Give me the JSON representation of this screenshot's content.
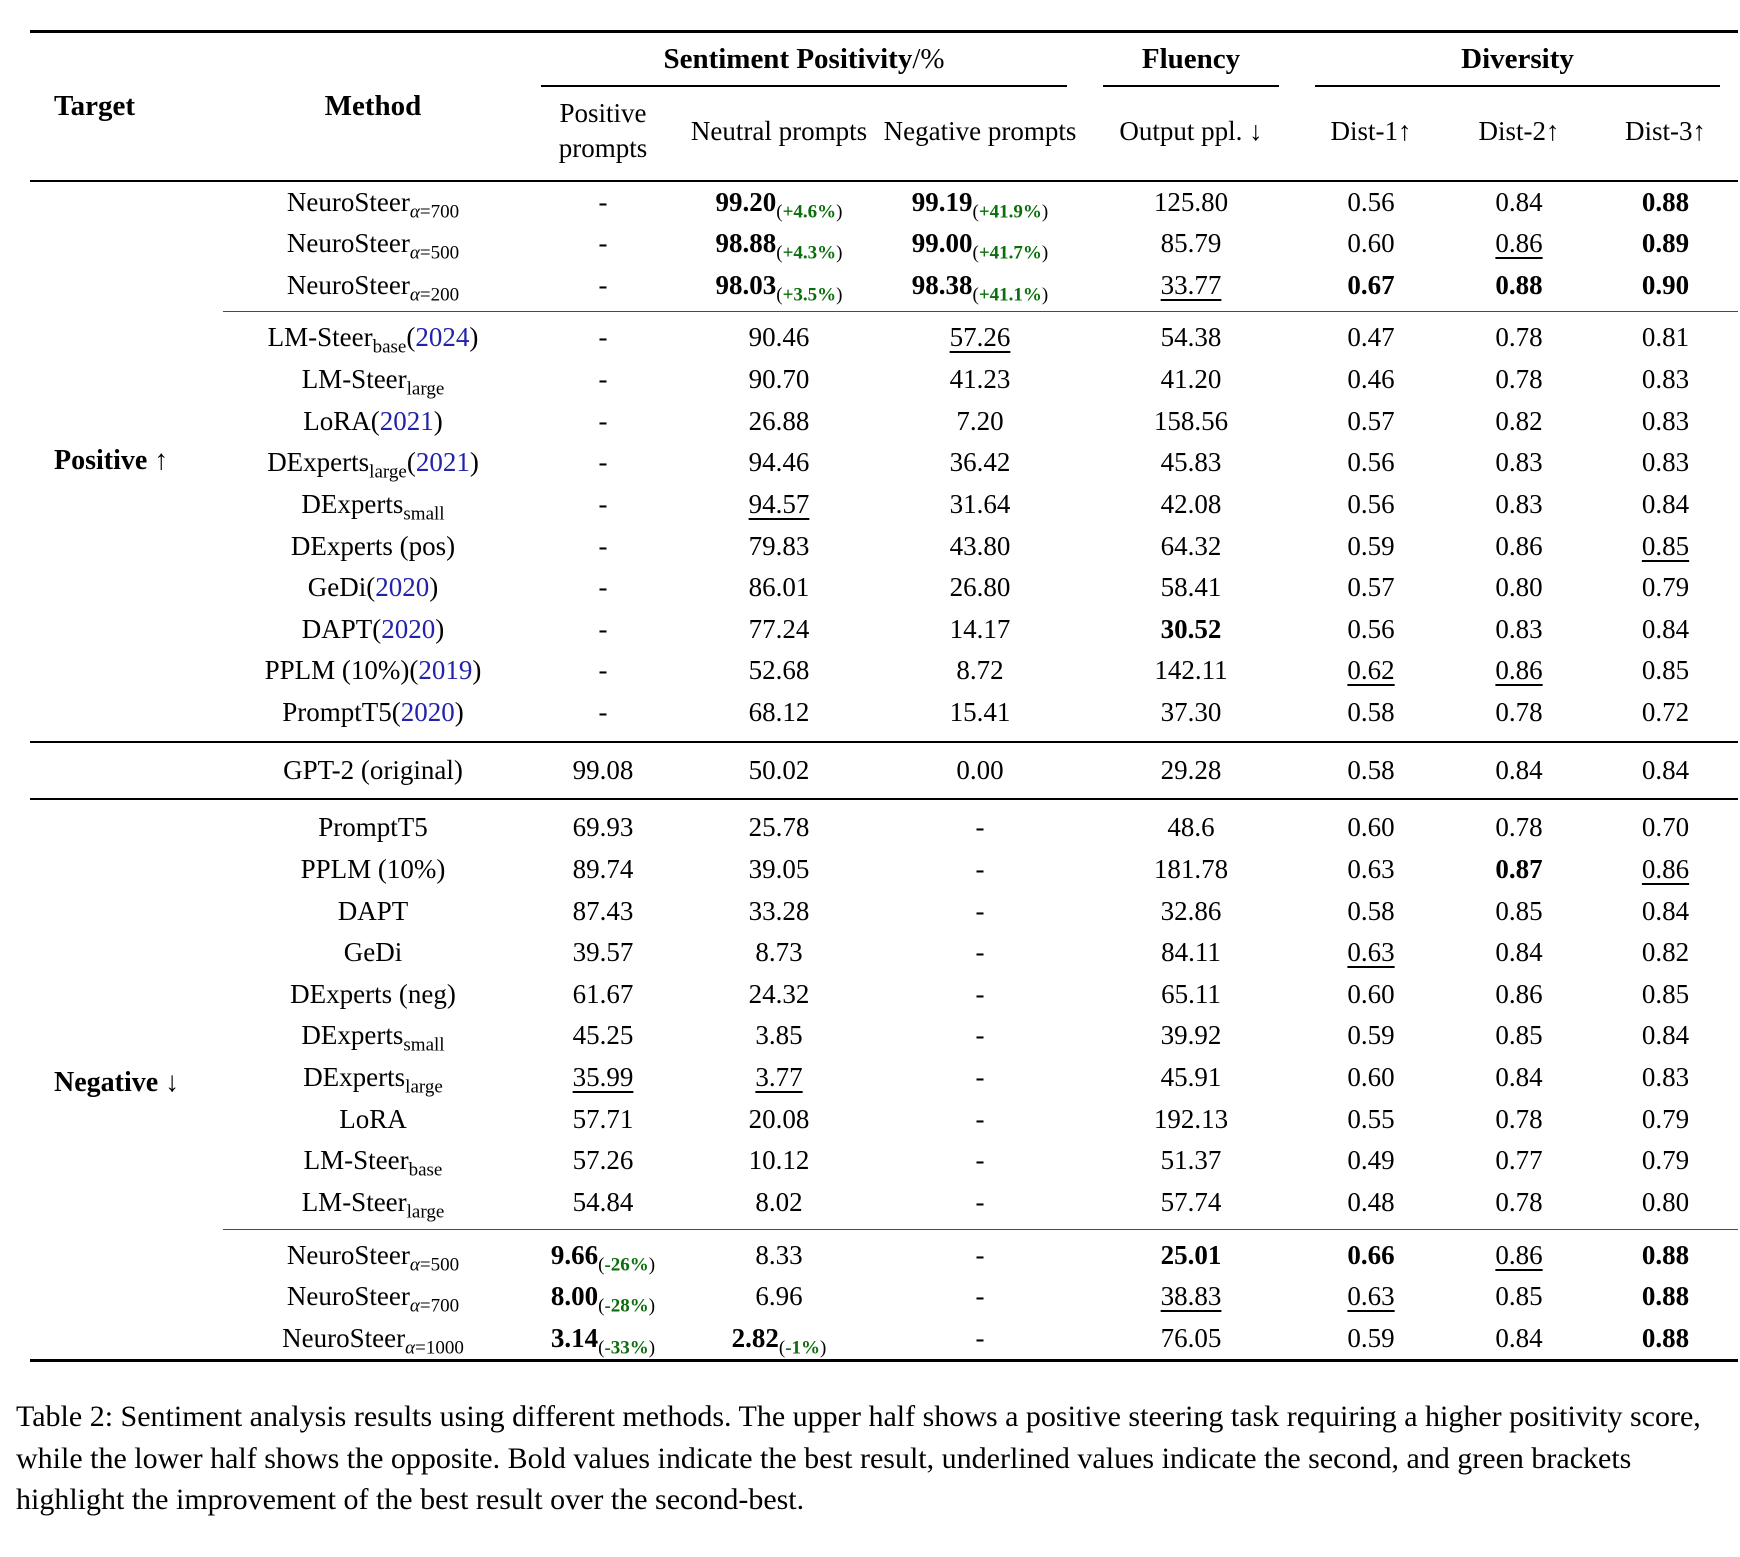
{
  "colors": {
    "green_note": "#0B6E0B",
    "cite_blue": "#2222AA"
  },
  "table": {
    "header": {
      "target": "Target",
      "method": "Method",
      "groups": {
        "sentiment_bold": "Sentiment Positivity",
        "sentiment_rest": "/%",
        "fluency": "Fluency",
        "diversity": "Diversity"
      },
      "cols": {
        "positive_prompts": "Positive prompts",
        "neutral_prompts": "Neutral prompts",
        "negative_prompts": "Negative prompts",
        "ppl": "Output ppl. ↓",
        "dist1": "Dist-1↑",
        "dist2": "Dist-2↑",
        "dist3": "Dist-3↑"
      }
    },
    "sections": [
      {
        "target": "Positive ↑",
        "rows": [
          {
            "method": {
              "name": "NeuroSteer",
              "sub": "α=700"
            },
            "cells": [
              "-",
              {
                "v": "99.20",
                "b": 1,
                "note": "+4.6%"
              },
              {
                "v": "99.19",
                "b": 1,
                "note": "+41.9%"
              },
              "125.80",
              "0.56",
              "0.84",
              {
                "v": "0.88",
                "b": 1
              }
            ]
          },
          {
            "method": {
              "name": "NeuroSteer",
              "sub": "α=500"
            },
            "cells": [
              "-",
              {
                "v": "98.88",
                "b": 1,
                "note": "+4.3%"
              },
              {
                "v": "99.00",
                "b": 1,
                "note": "+41.7%"
              },
              "85.79",
              "0.60",
              {
                "v": "0.86",
                "u": 1
              },
              {
                "v": "0.89",
                "b": 1
              }
            ]
          },
          {
            "method": {
              "name": "NeuroSteer",
              "sub": "α=200"
            },
            "rule": "cmid",
            "cells": [
              "-",
              {
                "v": "98.03",
                "b": 1,
                "note": "+3.5%"
              },
              {
                "v": "98.38",
                "b": 1,
                "note": "+41.1%"
              },
              {
                "v": "33.77",
                "u": 1
              },
              {
                "v": "0.67",
                "b": 1
              },
              {
                "v": "0.88",
                "b": 1
              },
              {
                "v": "0.90",
                "b": 1
              }
            ]
          },
          {
            "method": {
              "name": "LM-Steer",
              "sub": "base",
              "cite": "2024"
            },
            "cells": [
              "-",
              "90.46",
              {
                "v": "57.26",
                "u": 1
              },
              "54.38",
              "0.47",
              "0.78",
              "0.81"
            ]
          },
          {
            "method": {
              "name": "LM-Steer",
              "sub": "large"
            },
            "cells": [
              "-",
              "90.70",
              "41.23",
              "41.20",
              "0.46",
              "0.78",
              "0.83"
            ]
          },
          {
            "method": {
              "name": "LoRA",
              "cite": "2021"
            },
            "cells": [
              "-",
              "26.88",
              "7.20",
              "158.56",
              "0.57",
              "0.82",
              "0.83"
            ]
          },
          {
            "method": {
              "name": "DExperts",
              "sub": "large",
              "cite": "2021"
            },
            "cells": [
              "-",
              "94.46",
              "36.42",
              "45.83",
              "0.56",
              "0.83",
              "0.83"
            ]
          },
          {
            "method": {
              "name": "DExperts",
              "sub": "small"
            },
            "cells": [
              "-",
              {
                "v": "94.57",
                "u": 1
              },
              "31.64",
              "42.08",
              "0.56",
              "0.83",
              "0.84"
            ]
          },
          {
            "method": {
              "name": "DExperts (pos)"
            },
            "cells": [
              "-",
              "79.83",
              "43.80",
              "64.32",
              "0.59",
              "0.86",
              {
                "v": "0.85",
                "u": 1
              }
            ]
          },
          {
            "method": {
              "name": "GeDi",
              "cite": "2020"
            },
            "cells": [
              "-",
              "86.01",
              "26.80",
              "58.41",
              "0.57",
              "0.80",
              "0.79"
            ]
          },
          {
            "method": {
              "name": "DAPT",
              "cite": "2020"
            },
            "cells": [
              "-",
              "77.24",
              "14.17",
              {
                "v": "30.52",
                "b": 1
              },
              "0.56",
              "0.83",
              "0.84"
            ]
          },
          {
            "method": {
              "name": "PPLM (10%)",
              "cite": "2019"
            },
            "cells": [
              "-",
              "52.68",
              "8.72",
              "142.11",
              {
                "v": "0.62",
                "u": 1
              },
              {
                "v": "0.86",
                "u": 1
              },
              "0.85"
            ]
          },
          {
            "method": {
              "name": "PromptT5",
              "cite": "2020"
            },
            "cells": [
              "-",
              "68.12",
              "15.41",
              "37.30",
              "0.58",
              "0.78",
              "0.72"
            ]
          }
        ]
      },
      {
        "target": "",
        "rows": [
          {
            "method": {
              "name": "GPT-2 (original)"
            },
            "cells": [
              "99.08",
              "50.02",
              "0.00",
              "29.28",
              "0.58",
              "0.84",
              "0.84"
            ]
          }
        ]
      },
      {
        "target": "Negative ↓",
        "rows": [
          {
            "method": {
              "name": "PromptT5"
            },
            "cells": [
              "69.93",
              "25.78",
              "-",
              "48.6",
              "0.60",
              "0.78",
              "0.70"
            ]
          },
          {
            "method": {
              "name": "PPLM (10%)"
            },
            "cells": [
              "89.74",
              "39.05",
              "-",
              "181.78",
              "0.63",
              {
                "v": "0.87",
                "b": 1
              },
              {
                "v": "0.86",
                "u": 1
              }
            ]
          },
          {
            "method": {
              "name": "DAPT"
            },
            "cells": [
              "87.43",
              "33.28",
              "-",
              "32.86",
              "0.58",
              "0.85",
              "0.84"
            ]
          },
          {
            "method": {
              "name": "GeDi"
            },
            "cells": [
              "39.57",
              "8.73",
              "-",
              "84.11",
              {
                "v": "0.63",
                "u": 1
              },
              "0.84",
              "0.82"
            ]
          },
          {
            "method": {
              "name": "DExperts (neg)"
            },
            "cells": [
              "61.67",
              "24.32",
              "-",
              "65.11",
              "0.60",
              "0.86",
              "0.85"
            ]
          },
          {
            "method": {
              "name": "DExperts",
              "sub": "small"
            },
            "cells": [
              "45.25",
              "3.85",
              "-",
              "39.92",
              "0.59",
              "0.85",
              "0.84"
            ]
          },
          {
            "method": {
              "name": "DExperts",
              "sub": "large"
            },
            "cells": [
              {
                "v": "35.99",
                "u": 1
              },
              {
                "v": "3.77",
                "u": 1
              },
              "-",
              "45.91",
              "0.60",
              "0.84",
              "0.83"
            ]
          },
          {
            "method": {
              "name": "LoRA"
            },
            "cells": [
              "57.71",
              "20.08",
              "-",
              "192.13",
              "0.55",
              "0.78",
              "0.79"
            ]
          },
          {
            "method": {
              "name": "LM-Steer",
              "sub": "base"
            },
            "cells": [
              "57.26",
              "10.12",
              "-",
              "51.37",
              "0.49",
              "0.77",
              "0.79"
            ]
          },
          {
            "method": {
              "name": "LM-Steer",
              "sub": "large"
            },
            "rule": "cmid",
            "cells": [
              "54.84",
              "8.02",
              "-",
              "57.74",
              "0.48",
              "0.78",
              "0.80"
            ]
          },
          {
            "method": {
              "name": "NeuroSteer",
              "sub": "α=500"
            },
            "cells": [
              {
                "v": "9.66",
                "b": 1,
                "note": "-26%"
              },
              "8.33",
              "-",
              {
                "v": "25.01",
                "b": 1
              },
              {
                "v": "0.66",
                "b": 1
              },
              {
                "v": "0.86",
                "u": 1
              },
              {
                "v": "0.88",
                "b": 1
              }
            ]
          },
          {
            "method": {
              "name": "NeuroSteer",
              "sub": "α=700"
            },
            "cells": [
              {
                "v": "8.00",
                "b": 1,
                "note": "-28%"
              },
              "6.96",
              "-",
              {
                "v": "38.83",
                "u": 1
              },
              {
                "v": "0.63",
                "u": 1
              },
              "0.85",
              {
                "v": "0.88",
                "b": 1
              }
            ]
          },
          {
            "method": {
              "name": "NeuroSteer",
              "sub": "α=1000"
            },
            "cells": [
              {
                "v": "3.14",
                "b": 1,
                "note": "-33%"
              },
              {
                "v": "2.82",
                "b": 1,
                "note": "-1%"
              },
              "-",
              "76.05",
              "0.59",
              "0.84",
              {
                "v": "0.88",
                "b": 1
              }
            ]
          }
        ]
      }
    ]
  },
  "caption": "Table 2: Sentiment analysis results using different methods. The upper half shows a positive steering task requiring a higher positivity score, while the lower half shows the opposite. Bold values indicate the best result, underlined values indicate the second, and green brackets highlight the improvement of the best result over the second-best."
}
